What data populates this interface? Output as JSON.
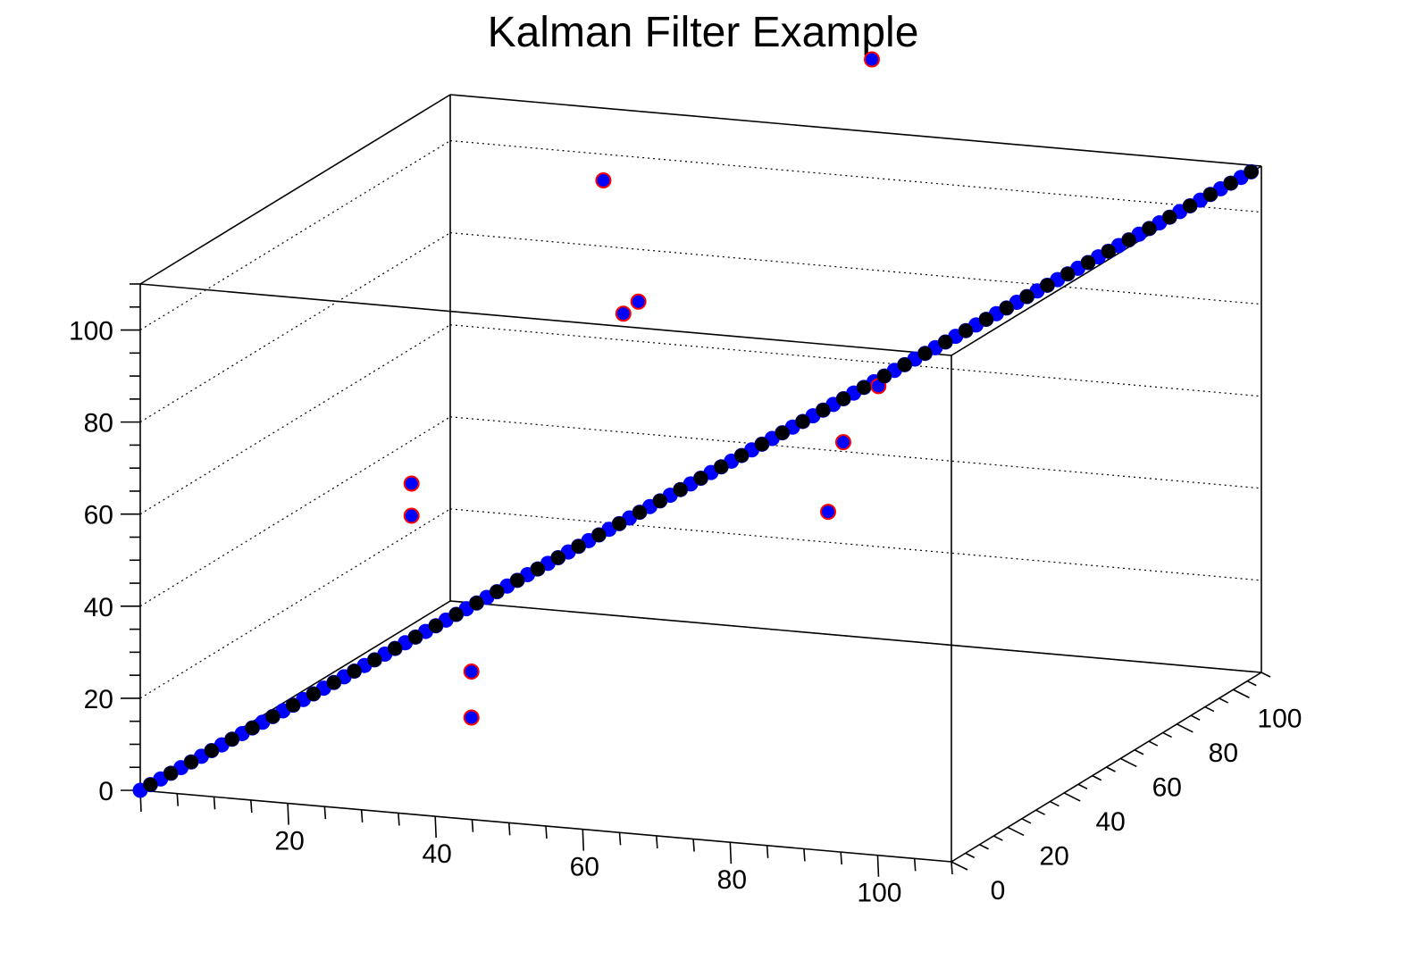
{
  "chart_data": {
    "type": "scatter3d",
    "title": "Kalman Filter Example",
    "xlim": [
      0,
      110
    ],
    "ylim": [
      0,
      110
    ],
    "zlim": [
      0,
      110
    ],
    "x_ticks": [
      "20",
      "40",
      "60",
      "80",
      "100"
    ],
    "x_tick_values": [
      20,
      40,
      60,
      80,
      100
    ],
    "y_ticks": [
      "0",
      "20",
      "40",
      "60",
      "80",
      "100"
    ],
    "y_tick_values": [
      0,
      20,
      40,
      60,
      80,
      100
    ],
    "z_ticks": [
      "0",
      "20",
      "40",
      "60",
      "80",
      "100"
    ],
    "z_tick_values": [
      0,
      20,
      40,
      60,
      80,
      100
    ],
    "grid": true,
    "colors": {
      "measured_fill": "#0000ff",
      "outlier_edge": "#ff0000",
      "estimate_fill": "#000000",
      "frame": "#000000"
    },
    "series": [
      {
        "role": "measurements",
        "points": [
          [
            0,
            0,
            0
          ],
          [
            1,
            1,
            1
          ],
          [
            2,
            2,
            2
          ],
          [
            3,
            3,
            3
          ],
          [
            4,
            4,
            4
          ],
          [
            5,
            5,
            5
          ],
          [
            6,
            6,
            6
          ],
          [
            7,
            7,
            7
          ],
          [
            8,
            8,
            8
          ],
          [
            9,
            9,
            9
          ],
          [
            10,
            10,
            10
          ],
          [
            11,
            11,
            11
          ],
          [
            12,
            12,
            12
          ],
          [
            13,
            13,
            13
          ],
          [
            14,
            14,
            14
          ],
          [
            15,
            15,
            15
          ],
          [
            16,
            16,
            16
          ],
          [
            17,
            17,
            17
          ],
          [
            18,
            18,
            18
          ],
          [
            19,
            19,
            19
          ],
          [
            20,
            20,
            20
          ],
          [
            21,
            21,
            21
          ],
          [
            22,
            22,
            22
          ],
          [
            23,
            23,
            23
          ],
          [
            24,
            24,
            24
          ],
          [
            25,
            25,
            25
          ],
          [
            26,
            26,
            26
          ],
          [
            27,
            27,
            27
          ],
          [
            28,
            28,
            28
          ],
          [
            29,
            29,
            29
          ],
          [
            30,
            30,
            30
          ],
          [
            31,
            31,
            31
          ],
          [
            32,
            32,
            32
          ],
          [
            33,
            33,
            33
          ],
          [
            34,
            34,
            34
          ],
          [
            35,
            35,
            35
          ],
          [
            36,
            36,
            36
          ],
          [
            37,
            37,
            37
          ],
          [
            38,
            38,
            38
          ],
          [
            39,
            39,
            39
          ],
          [
            40,
            40,
            40
          ],
          [
            41,
            41,
            41
          ],
          [
            42,
            42,
            42
          ],
          [
            43,
            43,
            43
          ],
          [
            44,
            44,
            44
          ],
          [
            45,
            45,
            45
          ],
          [
            46,
            46,
            46
          ],
          [
            47,
            47,
            47
          ],
          [
            48,
            48,
            48
          ],
          [
            49,
            49,
            49
          ],
          [
            50,
            50,
            50
          ],
          [
            51,
            51,
            51
          ],
          [
            52,
            52,
            52
          ],
          [
            53,
            53,
            53
          ],
          [
            54,
            54,
            54
          ],
          [
            55,
            55,
            55
          ],
          [
            56,
            56,
            56
          ],
          [
            57,
            57,
            57
          ],
          [
            58,
            58,
            58
          ],
          [
            59,
            59,
            59
          ],
          [
            60,
            60,
            60
          ],
          [
            61,
            61,
            61
          ],
          [
            62,
            62,
            62
          ],
          [
            63,
            63,
            63
          ],
          [
            64,
            64,
            64
          ],
          [
            65,
            65,
            65
          ],
          [
            66,
            66,
            66
          ],
          [
            67,
            67,
            67
          ],
          [
            68,
            68,
            68
          ],
          [
            69,
            69,
            69
          ],
          [
            70,
            70,
            70
          ],
          [
            71,
            71,
            71
          ],
          [
            72,
            72,
            72
          ],
          [
            73,
            73,
            73
          ],
          [
            74,
            74,
            74
          ],
          [
            75,
            75,
            75
          ],
          [
            76,
            76,
            76
          ],
          [
            77,
            77,
            77
          ],
          [
            78,
            78,
            78
          ],
          [
            79,
            79,
            79
          ],
          [
            80,
            80,
            80
          ],
          [
            81,
            81,
            81
          ],
          [
            82,
            82,
            82
          ],
          [
            83,
            83,
            83
          ],
          [
            84,
            84,
            84
          ],
          [
            85,
            85,
            85
          ],
          [
            86,
            86,
            86
          ],
          [
            87,
            87,
            87
          ],
          [
            88,
            88,
            88
          ],
          [
            89,
            89,
            89
          ],
          [
            90,
            90,
            90
          ],
          [
            91,
            91,
            91
          ],
          [
            92,
            92,
            92
          ],
          [
            93,
            93,
            93
          ],
          [
            94,
            94,
            94
          ],
          [
            95,
            95,
            95
          ],
          [
            96,
            96,
            96
          ],
          [
            97,
            97,
            97
          ],
          [
            98,
            98,
            98
          ],
          [
            99,
            99,
            99
          ],
          [
            100,
            100,
            100
          ],
          [
            101,
            101,
            101
          ],
          [
            102,
            102,
            102
          ],
          [
            103,
            103,
            103
          ],
          [
            104,
            104,
            104
          ],
          [
            105,
            105,
            105
          ],
          [
            106,
            106,
            106
          ],
          [
            107,
            107,
            107
          ],
          [
            108,
            108,
            108
          ],
          [
            109,
            109,
            109
          ]
        ]
      },
      {
        "role": "outliers",
        "points": [
          [
            33,
            78,
            108
          ],
          [
            61,
            100,
            130
          ],
          [
            58,
            25,
            105
          ],
          [
            38,
            72,
            82
          ],
          [
            28,
            23,
            62
          ],
          [
            28,
            23,
            55
          ],
          [
            68,
            84,
            66
          ],
          [
            64,
            82,
            54
          ],
          [
            65,
            74,
            42
          ],
          [
            43,
            5,
            30
          ],
          [
            43,
            5,
            20
          ]
        ]
      },
      {
        "role": "estimates",
        "points": [
          [
            1,
            1,
            1
          ],
          [
            3,
            3,
            3
          ],
          [
            5,
            5,
            5
          ],
          [
            7,
            7,
            7
          ],
          [
            9,
            9,
            9
          ],
          [
            11,
            11,
            11
          ],
          [
            13,
            13,
            13
          ],
          [
            15,
            15,
            15
          ],
          [
            17,
            17,
            17
          ],
          [
            19,
            19,
            19
          ],
          [
            21,
            21,
            21
          ],
          [
            23,
            23,
            23
          ],
          [
            25,
            25,
            25
          ],
          [
            27,
            27,
            27
          ],
          [
            29,
            29,
            29
          ],
          [
            31,
            31,
            31
          ],
          [
            33,
            33,
            33
          ],
          [
            35,
            35,
            35
          ],
          [
            37,
            37,
            37
          ],
          [
            39,
            39,
            39
          ],
          [
            41,
            41,
            41
          ],
          [
            43,
            43,
            43
          ],
          [
            45,
            45,
            45
          ],
          [
            47,
            47,
            47
          ],
          [
            49,
            49,
            49
          ],
          [
            51,
            51,
            51
          ],
          [
            53,
            53,
            53
          ],
          [
            55,
            55,
            55
          ],
          [
            57,
            57,
            57
          ],
          [
            59,
            59,
            59
          ],
          [
            61,
            61,
            61
          ],
          [
            63,
            63,
            63
          ],
          [
            65,
            65,
            65
          ],
          [
            67,
            67,
            67
          ],
          [
            69,
            69,
            69
          ],
          [
            71,
            71,
            71
          ],
          [
            73,
            73,
            73
          ],
          [
            75,
            75,
            75
          ],
          [
            77,
            77,
            77
          ],
          [
            79,
            79,
            79
          ],
          [
            81,
            81,
            81
          ],
          [
            83,
            83,
            83
          ],
          [
            85,
            85,
            85
          ],
          [
            87,
            87,
            87
          ],
          [
            89,
            89,
            89
          ],
          [
            91,
            91,
            91
          ],
          [
            93,
            93,
            93
          ],
          [
            95,
            95,
            95
          ],
          [
            97,
            97,
            97
          ],
          [
            99,
            99,
            99
          ],
          [
            101,
            101,
            101
          ],
          [
            103,
            103,
            103
          ],
          [
            105,
            105,
            105
          ],
          [
            107,
            107,
            107
          ],
          [
            109,
            109,
            109
          ]
        ]
      }
    ]
  }
}
